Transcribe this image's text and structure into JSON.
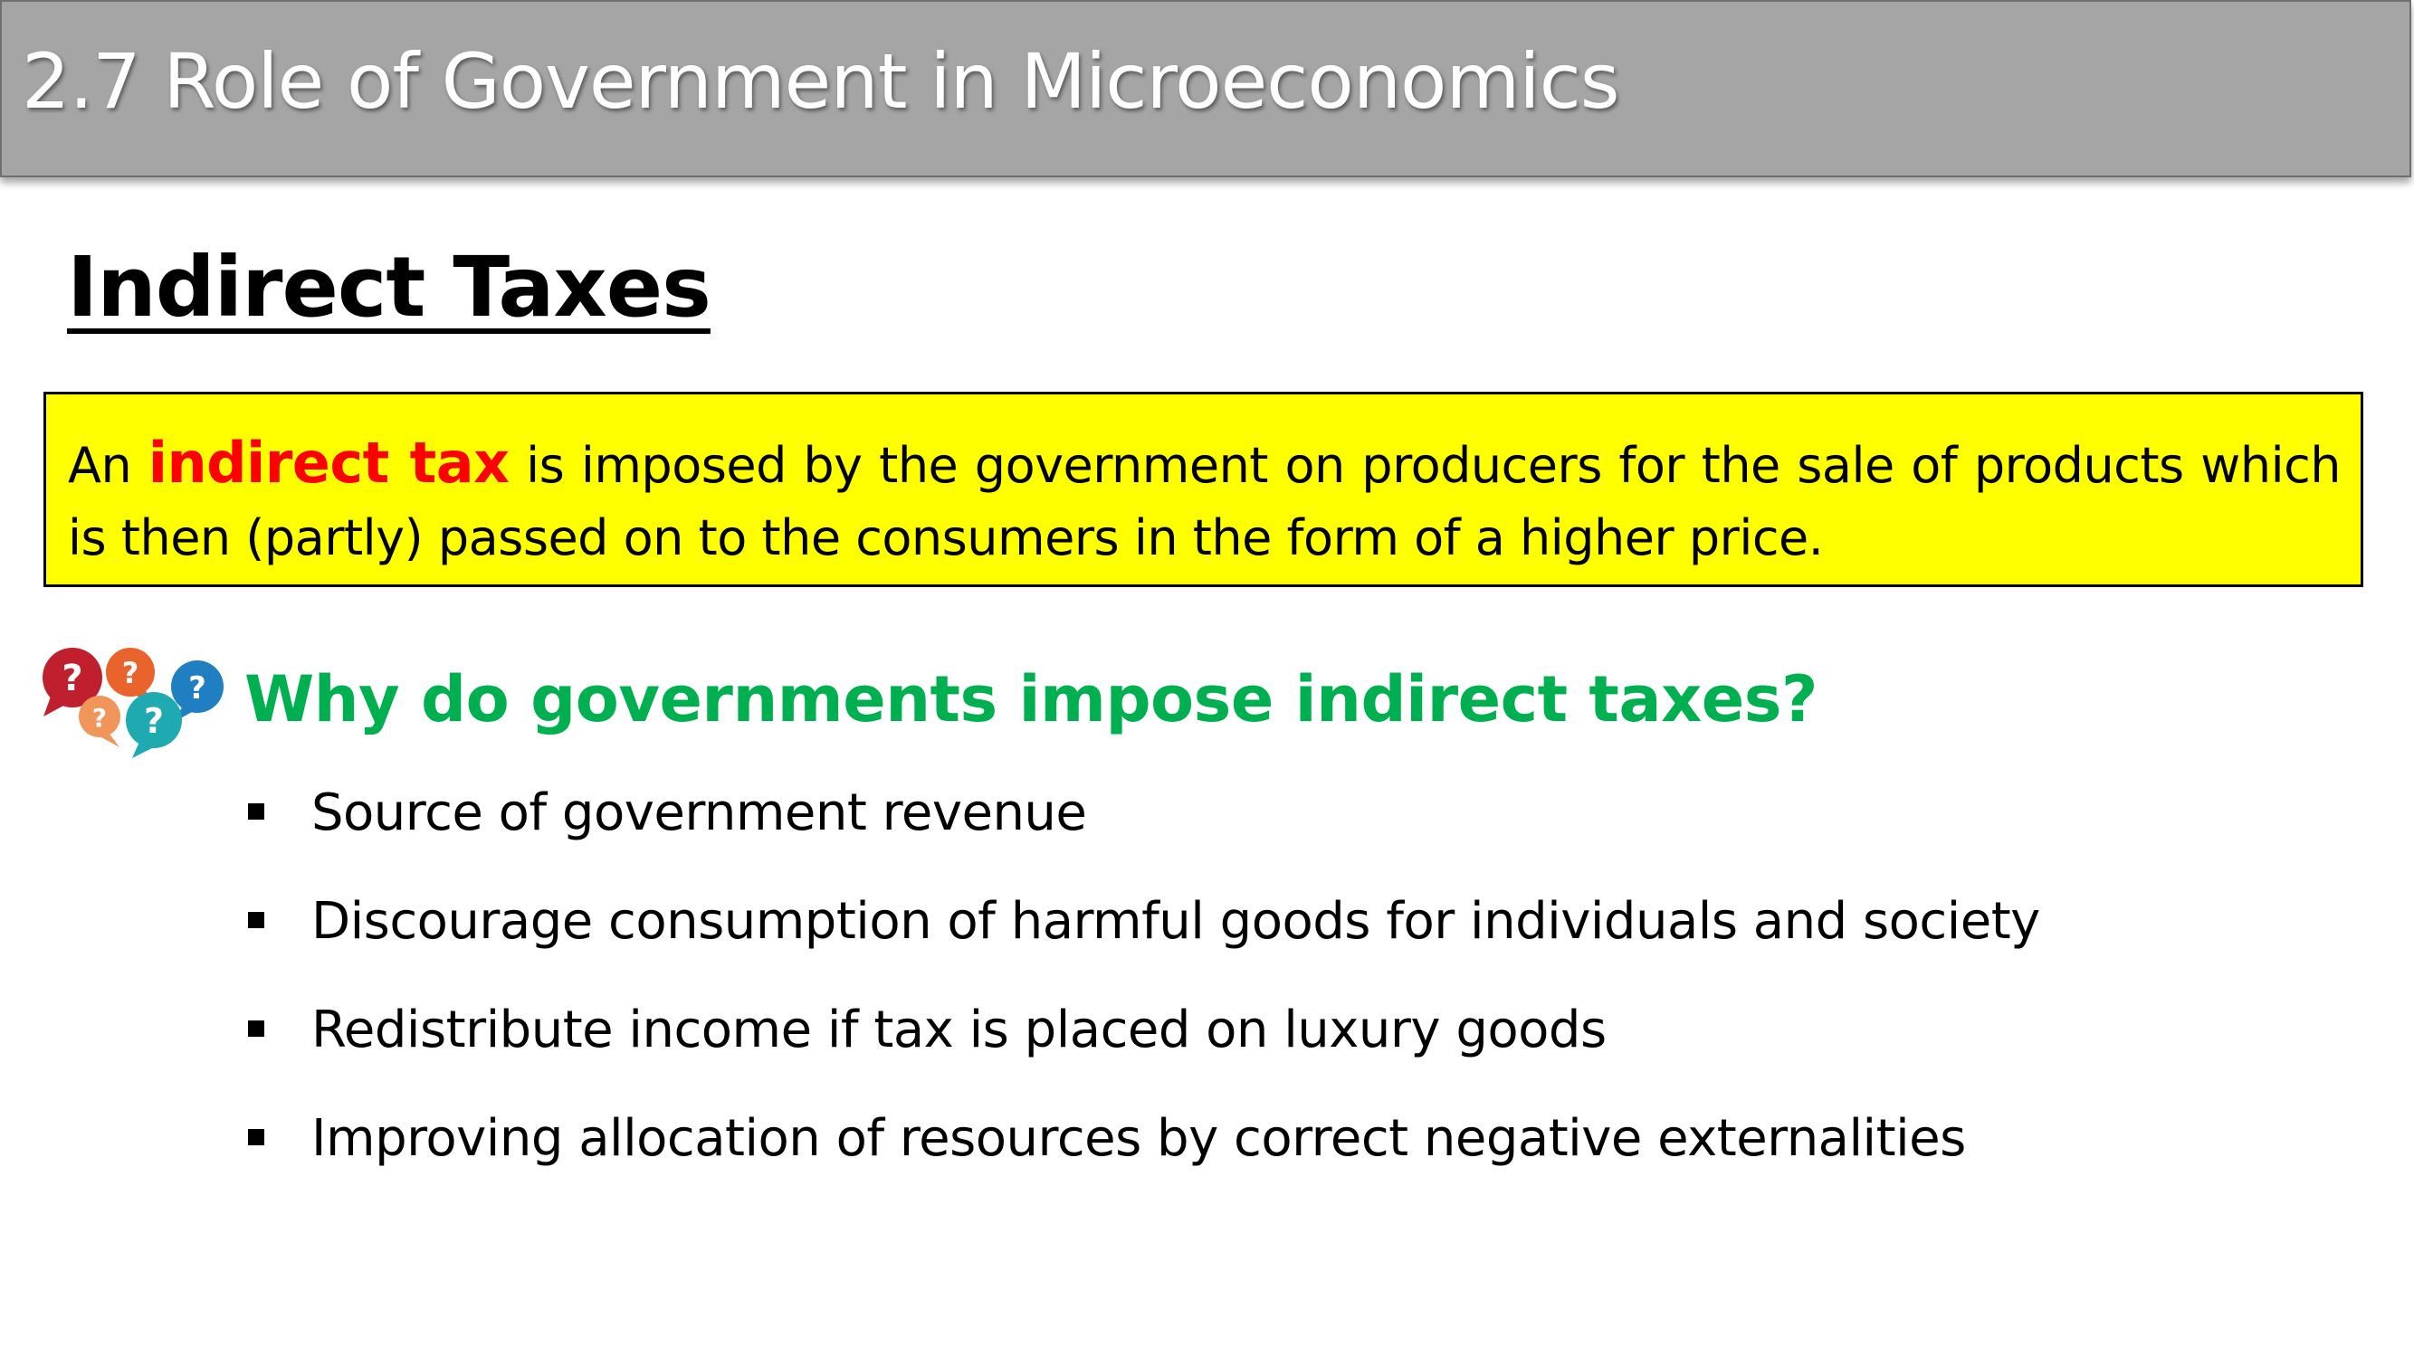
{
  "slide": {
    "title": "2.7 Role of Government in Microeconomics",
    "section_heading": "Indirect Taxes",
    "definition": {
      "prefix": "An ",
      "term": "indirect tax",
      "suffix": " is imposed by the government on producers for the sale of products which is then (partly) passed on to the consumers in the form of a higher price."
    },
    "question_icon": {
      "icon_name": "question-bubbles-icon",
      "glyph": "?",
      "colors": [
        "#c0202e",
        "#e8642c",
        "#1f7fc1",
        "#f0965a",
        "#1fa9b0"
      ]
    },
    "question": "Why do governments impose indirect taxes?",
    "reasons": [
      "Source of government revenue",
      "Discourage consumption of harmful goods for individuals and society",
      "Redistribute income if tax is placed on luxury goods",
      "Improving allocation of resources by correct negative externalities"
    ]
  },
  "colors": {
    "title_bar": "#a5a5a5",
    "definition_box": "#ffff00",
    "term_highlight": "#ff0000",
    "question_text": "#00b050"
  }
}
